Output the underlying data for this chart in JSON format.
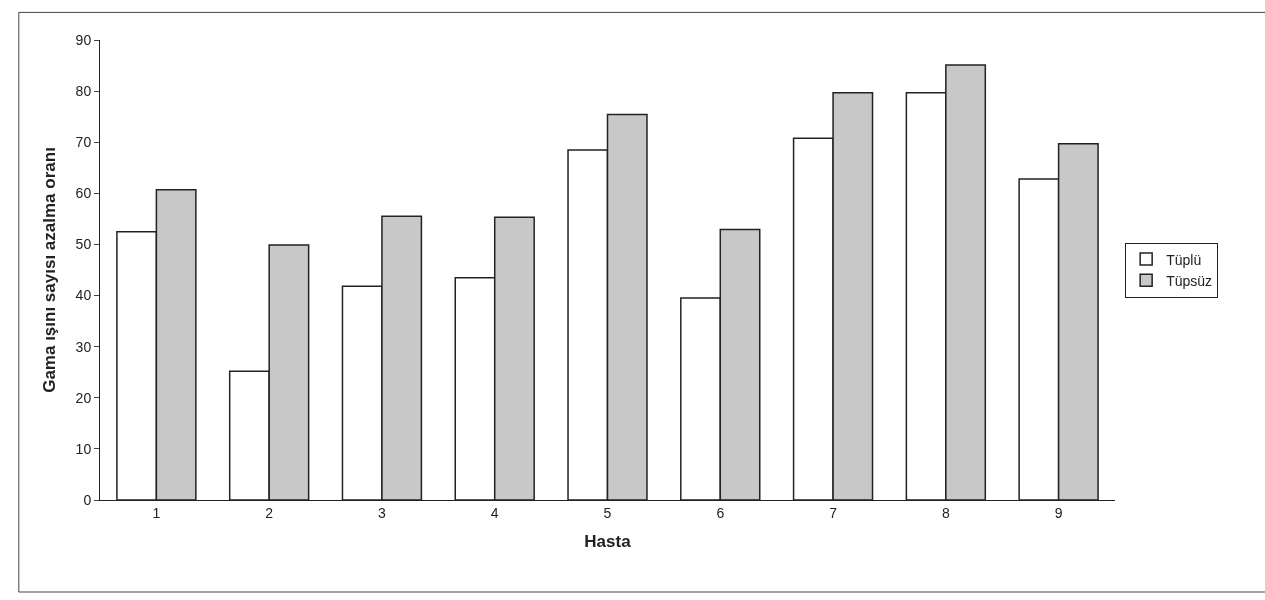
{
  "chart_data": {
    "type": "bar",
    "xlabel": "Hasta",
    "ylabel": "Gama ışını sayısı azalma oranı",
    "categories": [
      "1",
      "2",
      "3",
      "4",
      "5",
      "6",
      "7",
      "8",
      "9"
    ],
    "series": [
      {
        "name": "Tüplü",
        "color": "#ffffff",
        "values": [
          52.5,
          25.2,
          41.8,
          43.5,
          68.5,
          39.5,
          70.8,
          79.7,
          62.8
        ]
      },
      {
        "name": "Tüpsüz",
        "color": "#c8c8c8",
        "values": [
          60.7,
          49.9,
          55.5,
          55.3,
          75.4,
          52.9,
          79.7,
          85.1,
          69.7
        ]
      }
    ],
    "ylim": [
      0,
      90
    ],
    "yticks": [
      0,
      10,
      20,
      30,
      40,
      50,
      60,
      70,
      80,
      90
    ],
    "legend": "right"
  }
}
